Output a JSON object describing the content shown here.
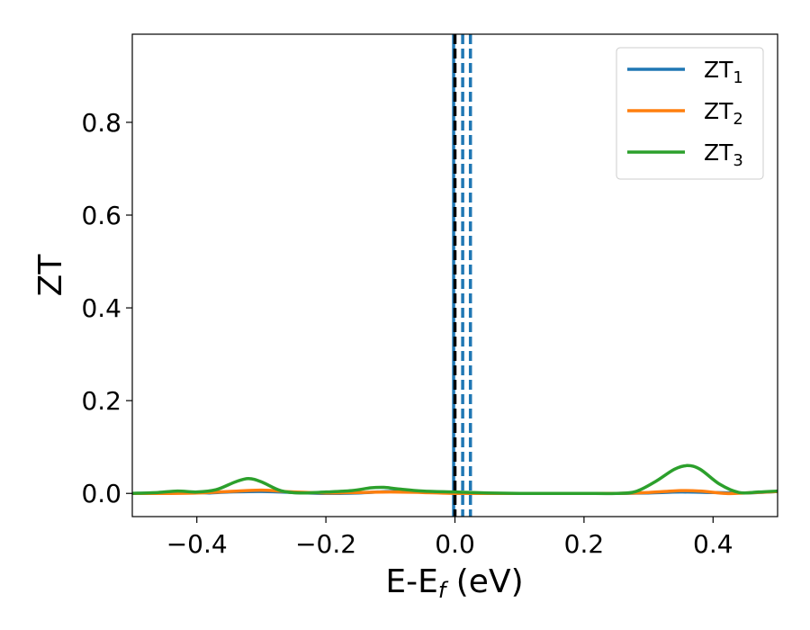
{
  "chart_data": {
    "type": "line",
    "xlabel": {
      "main": "E-E",
      "sub": "f",
      "tail": " (eV)"
    },
    "ylabel": "ZT",
    "xlim": [
      -0.5,
      0.5
    ],
    "ylim": [
      -0.05,
      0.99
    ],
    "xticks": [
      -0.4,
      -0.2,
      0.0,
      0.2,
      0.4
    ],
    "xtick_labels": [
      "−0.4",
      "−0.2",
      "0.0",
      "0.2",
      "0.4"
    ],
    "yticks": [
      0.0,
      0.2,
      0.4,
      0.6,
      0.8
    ],
    "ytick_labels": [
      "0.0",
      "0.2",
      "0.4",
      "0.6",
      "0.8"
    ],
    "grid": false,
    "legend_position": "top-right",
    "legend": [
      {
        "base": "ZT",
        "sub": "1",
        "color": "#1f77b4"
      },
      {
        "base": "ZT",
        "sub": "2",
        "color": "#ff7f0e"
      },
      {
        "base": "ZT",
        "sub": "3",
        "color": "#2ca02c"
      }
    ],
    "series": [
      {
        "name": "ZT1",
        "color": "#1f77b4",
        "x": [
          -0.5,
          -0.45,
          -0.4,
          -0.38,
          -0.35,
          -0.3,
          -0.25,
          -0.2,
          -0.15,
          -0.12,
          -0.1,
          -0.05,
          0.0,
          0.05,
          0.1,
          0.15,
          0.2,
          0.25,
          0.3,
          0.35,
          0.4,
          0.45,
          0.5
        ],
        "y": [
          0.0,
          0.001,
          0.002,
          0.001,
          0.003,
          0.004,
          0.002,
          0.0,
          0.001,
          0.003,
          0.004,
          0.003,
          0.001,
          0.0,
          0.0,
          0.0,
          0.0,
          0.0,
          0.001,
          0.003,
          0.002,
          0.001,
          0.004
        ]
      },
      {
        "name": "ZT2",
        "color": "#ff7f0e",
        "x": [
          -0.5,
          -0.45,
          -0.4,
          -0.35,
          -0.3,
          -0.25,
          -0.2,
          -0.15,
          -0.1,
          -0.05,
          0.0,
          0.05,
          0.1,
          0.15,
          0.2,
          0.25,
          0.3,
          0.35,
          0.38,
          0.42,
          0.45,
          0.5
        ],
        "y": [
          0.0,
          0.0,
          0.001,
          0.004,
          0.007,
          0.003,
          0.001,
          0.002,
          0.003,
          0.002,
          0.0,
          0.0,
          0.0,
          0.0,
          0.0,
          0.0,
          0.002,
          0.006,
          0.005,
          0.0,
          0.001,
          0.004
        ]
      },
      {
        "name": "ZT3",
        "color": "#2ca02c",
        "x": [
          -0.5,
          -0.46,
          -0.43,
          -0.4,
          -0.37,
          -0.34,
          -0.32,
          -0.3,
          -0.27,
          -0.24,
          -0.2,
          -0.16,
          -0.13,
          -0.11,
          -0.09,
          -0.05,
          0.0,
          0.05,
          0.1,
          0.15,
          0.2,
          0.25,
          0.28,
          0.31,
          0.34,
          0.36,
          0.38,
          0.41,
          0.44,
          0.47,
          0.5
        ],
        "y": [
          0.0,
          0.002,
          0.005,
          0.003,
          0.008,
          0.025,
          0.032,
          0.025,
          0.006,
          0.001,
          0.003,
          0.006,
          0.012,
          0.013,
          0.01,
          0.005,
          0.003,
          0.001,
          0.0,
          0.0,
          0.0,
          0.0,
          0.004,
          0.025,
          0.052,
          0.06,
          0.052,
          0.02,
          0.002,
          0.003,
          0.005
        ]
      }
    ],
    "vertical_lines": [
      {
        "x": -0.002,
        "color": "#1f77b4",
        "style": "solid"
      },
      {
        "x": 0.0,
        "color": "#000000",
        "style": "dashed"
      },
      {
        "x": 0.012,
        "color": "#1f77b4",
        "style": "dashed"
      },
      {
        "x": 0.024,
        "color": "#1f77b4",
        "style": "dashed"
      }
    ]
  }
}
